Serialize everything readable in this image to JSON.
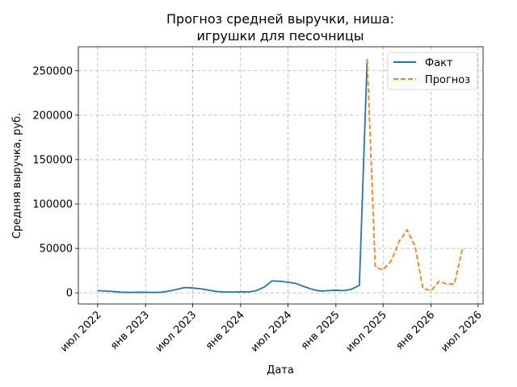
{
  "chart_data": {
    "type": "line",
    "title_line1": "Прогноз средней выручки, ниша:",
    "title_line2": "игрушки для песочницы",
    "xlabel": "Дата",
    "ylabel": "Средняя выручка, руб.",
    "x_ticks": [
      {
        "label": "июл 2022",
        "date": "2022-07-01"
      },
      {
        "label": "янв 2023",
        "date": "2023-01-01"
      },
      {
        "label": "июл 2023",
        "date": "2023-07-01"
      },
      {
        "label": "янв 2024",
        "date": "2024-01-01"
      },
      {
        "label": "июл 2024",
        "date": "2024-07-01"
      },
      {
        "label": "янв 2025",
        "date": "2025-01-01"
      },
      {
        "label": "июл 2025",
        "date": "2025-07-01"
      },
      {
        "label": "янв 2026",
        "date": "2026-01-01"
      },
      {
        "label": "июл 2026",
        "date": "2026-07-01"
      }
    ],
    "y_ticks": [
      0,
      50000,
      100000,
      150000,
      200000,
      250000
    ],
    "xlim": [
      "2022-04-18",
      "2026-07-20"
    ],
    "ylim": [
      -12500,
      277000
    ],
    "grid": true,
    "legend_position": "top-right",
    "series": [
      {
        "name": "Факт",
        "color": "#1f77b4",
        "style": "solid",
        "points": [
          [
            "2022-07-01",
            2500
          ],
          [
            "2022-08-01",
            2000
          ],
          [
            "2022-09-01",
            1500
          ],
          [
            "2022-10-01",
            700
          ],
          [
            "2022-11-01",
            500
          ],
          [
            "2022-12-01",
            700
          ],
          [
            "2023-01-01",
            600
          ],
          [
            "2023-02-01",
            500
          ],
          [
            "2023-03-01",
            700
          ],
          [
            "2023-04-01",
            2000
          ],
          [
            "2023-05-01",
            4000
          ],
          [
            "2023-06-01",
            6000
          ],
          [
            "2023-07-01",
            5500
          ],
          [
            "2023-08-01",
            4500
          ],
          [
            "2023-09-01",
            3000
          ],
          [
            "2023-10-01",
            1500
          ],
          [
            "2023-11-01",
            1000
          ],
          [
            "2023-12-01",
            1000
          ],
          [
            "2024-01-01",
            1200
          ],
          [
            "2024-02-01",
            1000
          ],
          [
            "2024-03-01",
            2500
          ],
          [
            "2024-04-01",
            6500
          ],
          [
            "2024-05-01",
            13500
          ],
          [
            "2024-06-01",
            13000
          ],
          [
            "2024-07-01",
            12000
          ],
          [
            "2024-08-01",
            10500
          ],
          [
            "2024-09-01",
            7000
          ],
          [
            "2024-10-01",
            4000
          ],
          [
            "2024-11-01",
            2000
          ],
          [
            "2024-12-01",
            2500
          ],
          [
            "2025-01-01",
            3000
          ],
          [
            "2025-02-01",
            2500
          ],
          [
            "2025-03-01",
            4000
          ],
          [
            "2025-04-01",
            8500
          ],
          [
            "2025-05-01",
            263000
          ]
        ]
      },
      {
        "name": "Прогноз",
        "color": "#ff7f0e",
        "style": "dashed",
        "points": [
          [
            "2025-05-01",
            263000
          ],
          [
            "2025-06-01",
            29000
          ],
          [
            "2025-07-01",
            26000
          ],
          [
            "2025-08-01",
            36000
          ],
          [
            "2025-09-01",
            58000
          ],
          [
            "2025-10-01",
            71000
          ],
          [
            "2025-11-01",
            52000
          ],
          [
            "2025-12-01",
            5000
          ],
          [
            "2026-01-01",
            2500
          ],
          [
            "2026-02-01",
            13000
          ],
          [
            "2026-03-01",
            10000
          ],
          [
            "2026-04-01",
            10000
          ],
          [
            "2026-05-01",
            49000
          ]
        ]
      }
    ]
  }
}
